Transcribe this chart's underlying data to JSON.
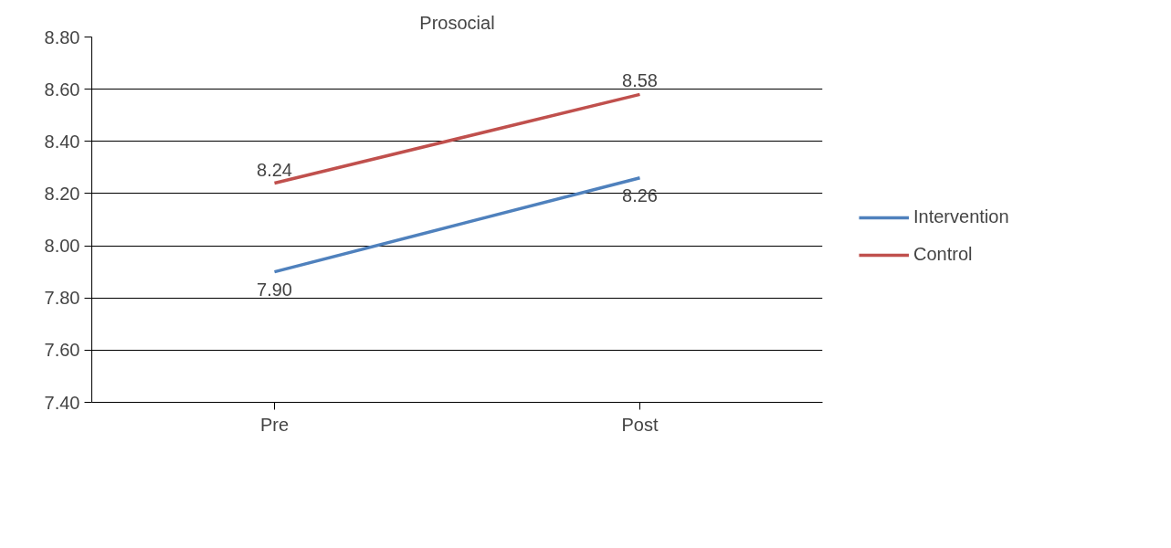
{
  "chart_data": {
    "type": "line",
    "title": "Prosocial",
    "categories": [
      "Pre",
      "Post"
    ],
    "series": [
      {
        "name": "Intervention",
        "color": "#4f81bd",
        "values": [
          7.9,
          8.26
        ],
        "value_labels": [
          "7.90",
          "8.26"
        ]
      },
      {
        "name": "Control",
        "color": "#c0504d",
        "values": [
          8.24,
          8.58
        ],
        "value_labels": [
          "8.24",
          "8.58"
        ]
      }
    ],
    "ylim": [
      7.4,
      8.8
    ],
    "yticks": [
      {
        "value": 7.4,
        "label": "7.40"
      },
      {
        "value": 7.6,
        "label": "7.60"
      },
      {
        "value": 7.8,
        "label": "7.80"
      },
      {
        "value": 8.0,
        "label": "8.00"
      },
      {
        "value": 8.2,
        "label": "8.20"
      },
      {
        "value": 8.4,
        "label": "8.40"
      },
      {
        "value": 8.6,
        "label": "8.60"
      },
      {
        "value": 8.8,
        "label": "8.80"
      }
    ],
    "grid": "y",
    "legend": "right",
    "marker": "none",
    "line_style": "solid"
  }
}
